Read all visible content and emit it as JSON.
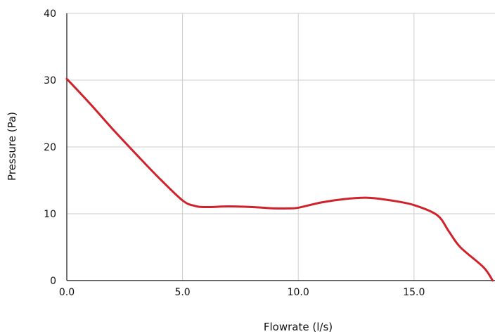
{
  "colors": {
    "series": "#d0222a",
    "grid": "#cccccc",
    "axis": "#111111",
    "background": "#ffffff"
  },
  "chart_data": {
    "type": "line",
    "title": "",
    "xlabel": "Flowrate (l/s)",
    "ylabel": "Pressure (Pa)",
    "xlim": [
      0,
      18.5
    ],
    "ylim": [
      0,
      40
    ],
    "x_ticks": [
      "0.0",
      "5.0",
      "10.0",
      "15.0"
    ],
    "y_ticks": [
      "0",
      "10",
      "20",
      "30",
      "40"
    ],
    "grid": true,
    "legend": false,
    "series": [
      {
        "x": [
          0.0,
          1.0,
          2.0,
          3.0,
          4.0,
          5.0,
          5.5,
          6.0,
          7.0,
          8.0,
          9.0,
          9.5,
          10.0,
          11.0,
          12.0,
          13.0,
          14.0,
          15.0,
          16.0,
          16.5,
          17.0,
          18.0,
          18.4
        ],
        "y": [
          30.2,
          26.5,
          22.6,
          18.9,
          15.3,
          12.0,
          11.2,
          11.0,
          11.1,
          11.0,
          10.8,
          10.8,
          10.9,
          11.7,
          12.2,
          12.4,
          12.0,
          11.3,
          9.8,
          7.4,
          5.0,
          2.0,
          0.0
        ]
      }
    ]
  }
}
